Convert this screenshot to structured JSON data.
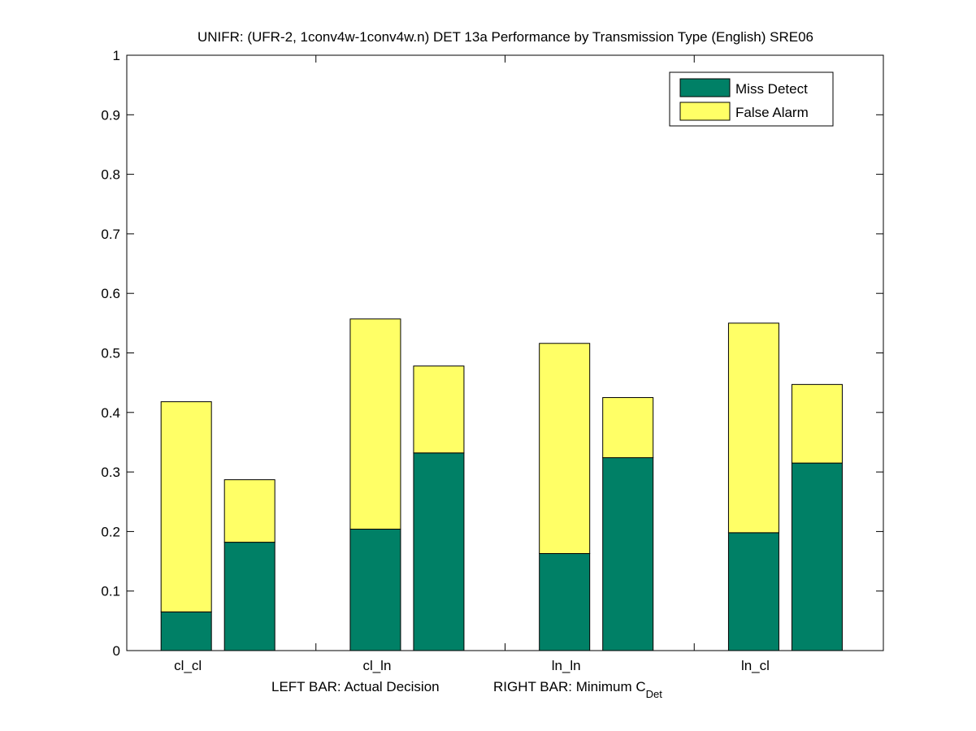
{
  "chart_data": {
    "type": "bar",
    "title": "UNIFR: (UFR-2, 1conv4w-1conv4w.n) DET 13a Performance by Transmission Type (English) SRE06",
    "xlabel": {
      "left": "LEFT BAR: Actual Decision",
      "right_prefix": "RIGHT BAR: Minimum C",
      "right_subscript": "Det"
    },
    "ylabel": "",
    "ylim": [
      0,
      1
    ],
    "yticks": [
      "0",
      "0.1",
      "0.2",
      "0.3",
      "0.4",
      "0.5",
      "0.6",
      "0.7",
      "0.8",
      "0.9",
      "1"
    ],
    "categories": [
      "cl_cl",
      "cl_ln",
      "ln_ln",
      "ln_cl"
    ],
    "bar_roles": [
      "Actual Decision",
      "Minimum C_Det"
    ],
    "series": [
      {
        "name": "Miss Detect",
        "color": "#008066",
        "actual": [
          0.065,
          0.204,
          0.163,
          0.198
        ],
        "minimum": [
          0.182,
          0.332,
          0.324,
          0.315
        ]
      },
      {
        "name": "False Alarm",
        "color": "#ffff66",
        "actual": [
          0.353,
          0.353,
          0.353,
          0.352
        ],
        "minimum": [
          0.105,
          0.146,
          0.101,
          0.132
        ]
      }
    ],
    "legend": {
      "position": "top-right",
      "entries": [
        "Miss Detect",
        "False Alarm"
      ]
    },
    "grid": false
  }
}
